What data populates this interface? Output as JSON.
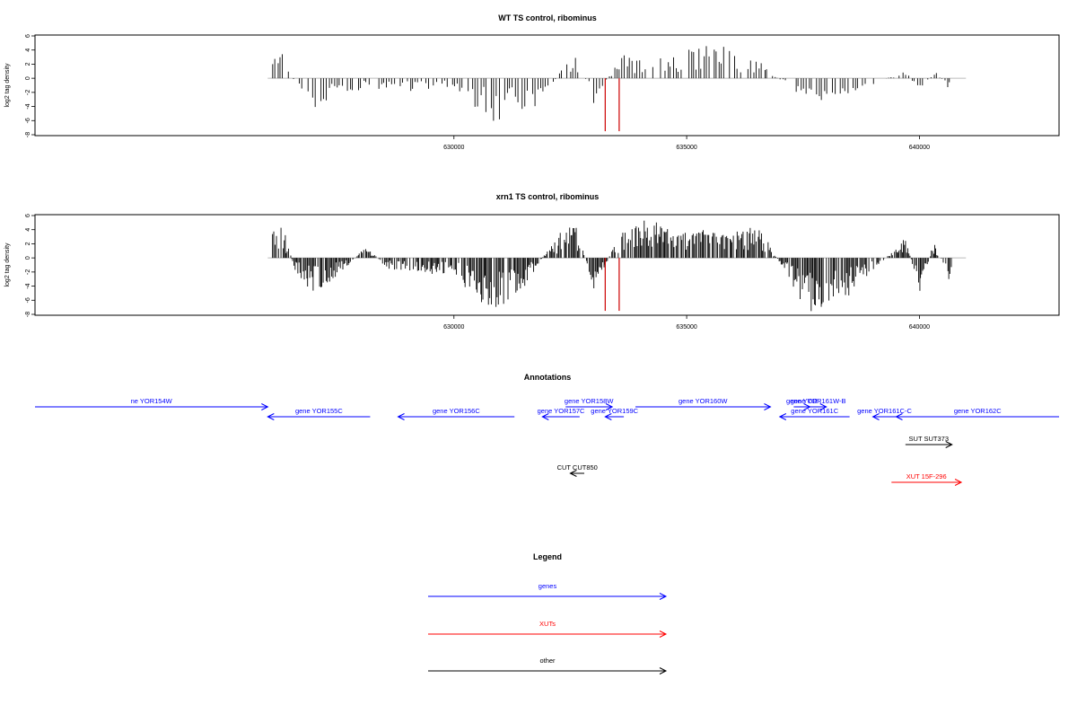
{
  "chart_data": [
    {
      "type": "bar",
      "title": "WT TS control, ribominus",
      "ylabel": "log2 tag density",
      "xlim": [
        621000,
        643000
      ],
      "ylim": [
        -8,
        6
      ],
      "xticks": [
        630000,
        635000,
        640000
      ],
      "xtick_labels": [
        "630000",
        "635000",
        "640000"
      ],
      "yticks": [
        6,
        4,
        2,
        0,
        -2,
        -4,
        -6,
        -8
      ],
      "ytick_labels": [
        "6",
        "4",
        "2",
        "0",
        "-2",
        "-4",
        "-6",
        "-8"
      ],
      "grid": false,
      "baseline": {
        "from": 626000,
        "to": 641000,
        "color": "#bbbbbb"
      },
      "series": [
        {
          "color": "#000000",
          "profile": "wt",
          "x": [
            626100,
            626300,
            626600,
            626900,
            627300,
            628100,
            628600,
            630000,
            630900,
            631300,
            632000,
            632300,
            632600,
            633000,
            633600,
            634200,
            634700,
            635300,
            635900,
            636200,
            636600,
            637500,
            638000,
            638500,
            639700,
            640000,
            640300,
            640700
          ],
          "values": [
            2.6,
            3.5,
            -1,
            -3.8,
            -2.8,
            -1.2,
            -1.5,
            -1.3,
            -6.2,
            -4.5,
            -2.5,
            1.5,
            3.5,
            -2.8,
            3,
            2.5,
            3,
            4,
            3.5,
            2.5,
            2,
            -3,
            -2.5,
            -1.8,
            1,
            -2.5,
            1,
            -1.8
          ]
        },
        {
          "color": "#cc0000",
          "x": [
            633250,
            633550
          ],
          "values": [
            -7.5,
            -7.5
          ]
        }
      ]
    },
    {
      "type": "bar",
      "title": "xrn1 TS control, ribominus",
      "ylabel": "log2 tag density",
      "xlim": [
        621000,
        643000
      ],
      "ylim": [
        -8,
        6
      ],
      "xticks": [
        630000,
        635000,
        640000
      ],
      "xtick_labels": [
        "630000",
        "635000",
        "640000"
      ],
      "yticks": [
        6,
        4,
        2,
        0,
        -2,
        -4,
        -6,
        -8
      ],
      "ytick_labels": [
        "6",
        "4",
        "2",
        "0",
        "-2",
        "-4",
        "-6",
        "-8"
      ],
      "grid": false,
      "baseline": {
        "from": 626000,
        "to": 641000,
        "color": "#bbbbbb"
      },
      "series": [
        {
          "color": "#000000",
          "profile": "xrn1",
          "x": [
            626100,
            626300,
            626600,
            626900,
            627300,
            628100,
            628600,
            630000,
            630900,
            631300,
            632000,
            632300,
            632600,
            633000,
            633600,
            634200,
            634700,
            635300,
            635900,
            636200,
            636600,
            637500,
            638000,
            638500,
            639700,
            640000,
            640300,
            640700
          ],
          "values": [
            3.5,
            4,
            -2,
            -4.5,
            -3.5,
            1.5,
            -1.5,
            -2,
            -7,
            -5.5,
            1,
            3,
            4.5,
            -4,
            3.5,
            4.5,
            3.5,
            3.5,
            3,
            3.5,
            3.5,
            -6,
            -6.5,
            -4.5,
            2.5,
            -4.5,
            2,
            -3.5
          ]
        },
        {
          "color": "#cc0000",
          "x": [
            633250,
            633550
          ],
          "values": [
            -7.5,
            -7.5
          ]
        }
      ]
    }
  ],
  "annotations": {
    "title": "Annotations",
    "features": [
      {
        "label": "ne YOR154W",
        "x1": 621000,
        "x2": 626000,
        "row": 0,
        "dir": "right",
        "color": "#0000ff"
      },
      {
        "label": "gene YOR155C",
        "x1": 626000,
        "x2": 628200,
        "row": 1,
        "dir": "left",
        "color": "#0000ff"
      },
      {
        "label": "gene YOR156C",
        "x1": 628800,
        "x2": 631300,
        "row": 1,
        "dir": "left",
        "color": "#0000ff"
      },
      {
        "label": "gene YOR157C",
        "x1": 631900,
        "x2": 632700,
        "row": 1,
        "dir": "left",
        "color": "#0000ff"
      },
      {
        "label": "gene YOR158W",
        "x1": 632400,
        "x2": 633400,
        "row": 0,
        "dir": "right",
        "color": "#0000ff"
      },
      {
        "label": "gene YOR159C",
        "x1": 633250,
        "x2": 633650,
        "row": 1,
        "dir": "left",
        "color": "#0000ff"
      },
      {
        "label": "gene YOR160W",
        "x1": 633900,
        "x2": 636800,
        "row": 0,
        "dir": "right",
        "color": "#0000ff"
      },
      {
        "label": "gene YOR161C",
        "x1": 637000,
        "x2": 638500,
        "row": 1,
        "dir": "left",
        "color": "#0000ff"
      },
      {
        "label": "gene YOR",
        "x1": 637300,
        "x2": 637650,
        "row": 0,
        "dir": "right",
        "color": "#0000ff"
      },
      {
        "label": "gene YOR161W-B",
        "x1": 637650,
        "x2": 638000,
        "row": 0,
        "dir": "right",
        "color": "#0000ff"
      },
      {
        "label": "gene YOR161C-C",
        "x1": 639000,
        "x2": 639500,
        "row": 1,
        "dir": "left",
        "color": "#0000ff"
      },
      {
        "label": "gene YOR162C",
        "x1": 639500,
        "x2": 643000,
        "row": 1,
        "dir": "left",
        "color": "#0000ff"
      },
      {
        "label": "SUT SUT373",
        "x1": 639700,
        "x2": 640700,
        "row": 2,
        "dir": "right",
        "color": "#000000"
      },
      {
        "label": "CUT CUT850",
        "x1": 632500,
        "x2": 632800,
        "row": 3,
        "dir": "left",
        "color": "#000000"
      },
      {
        "label": "XUT 15F-296",
        "x1": 639400,
        "x2": 640900,
        "row": 4,
        "dir": "right",
        "color": "#ff0000"
      }
    ]
  },
  "legend": {
    "title": "Legend",
    "items": [
      {
        "label": "genes",
        "color": "#0000ff"
      },
      {
        "label": "XUTs",
        "color": "#ff0000"
      },
      {
        "label": "other",
        "color": "#000000"
      }
    ]
  }
}
